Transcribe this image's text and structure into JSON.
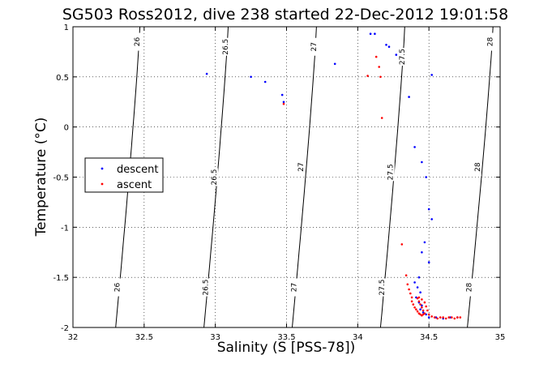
{
  "chart_data": {
    "type": "scatter",
    "title": "SG503 Ross2012, dive 238 started 22-Dec-2012 19:01:58",
    "xlabel": "Salinity (S [PSS-78])",
    "ylabel": "Temperature (°C)",
    "xlim": [
      32,
      35
    ],
    "ylim": [
      -2,
      1
    ],
    "xticks": [
      "32",
      "32.5",
      "33",
      "33.5",
      "34",
      "34.5",
      "35"
    ],
    "yticks": [
      "-2",
      "-1.5",
      "-1",
      "-0.5",
      "0",
      "0.5",
      "1"
    ],
    "xtick_values": [
      32,
      32.5,
      33,
      33.5,
      34,
      34.5,
      35
    ],
    "ytick_values": [
      -2,
      -1.5,
      -1,
      -0.5,
      0,
      0.5,
      1
    ],
    "grid": true,
    "legend_position": "left",
    "density_contours": [
      {
        "label": "26",
        "x_top": 32.47,
        "x_bottom": 32.3,
        "label_positions": [
          [
            32.45,
            0.85
          ],
          [
            32.31,
            -1.6
          ]
        ]
      },
      {
        "label": "26.5",
        "x_top": 33.09,
        "x_bottom": 32.92,
        "label_positions": [
          [
            33.07,
            0.8
          ],
          [
            32.99,
            -0.5
          ],
          [
            32.93,
            -1.6
          ]
        ]
      },
      {
        "label": "27",
        "x_top": 33.71,
        "x_bottom": 33.54,
        "label_positions": [
          [
            33.69,
            0.8
          ],
          [
            33.6,
            -0.4
          ],
          [
            33.55,
            -1.6
          ]
        ]
      },
      {
        "label": "27.5",
        "x_top": 34.33,
        "x_bottom": 34.16,
        "label_positions": [
          [
            34.31,
            0.7
          ],
          [
            34.23,
            -0.45
          ],
          [
            34.17,
            -1.6
          ]
        ]
      },
      {
        "label": "28",
        "x_top": 34.95,
        "x_bottom": 34.77,
        "label_positions": [
          [
            34.93,
            0.85
          ],
          [
            34.84,
            -0.4
          ],
          [
            34.78,
            -1.6
          ]
        ]
      }
    ],
    "series": [
      {
        "name": "descent",
        "color": "#0000ff",
        "points": [
          [
            32.94,
            0.53
          ],
          [
            33.25,
            0.5
          ],
          [
            33.35,
            0.45
          ],
          [
            33.47,
            0.32
          ],
          [
            33.48,
            0.25
          ],
          [
            33.84,
            0.63
          ],
          [
            34.09,
            0.93
          ],
          [
            34.12,
            0.93
          ],
          [
            34.2,
            0.82
          ],
          [
            34.22,
            0.8
          ],
          [
            34.27,
            0.72
          ],
          [
            34.36,
            0.3
          ],
          [
            34.4,
            -0.2
          ],
          [
            34.45,
            -0.35
          ],
          [
            34.48,
            -0.5
          ],
          [
            34.52,
            0.52
          ],
          [
            34.5,
            -0.82
          ],
          [
            34.52,
            -0.92
          ],
          [
            34.47,
            -1.15
          ],
          [
            34.45,
            -1.25
          ],
          [
            34.5,
            -1.35
          ],
          [
            34.43,
            -1.5
          ],
          [
            34.4,
            -1.55
          ],
          [
            34.42,
            -1.6
          ],
          [
            34.44,
            -1.65
          ],
          [
            34.41,
            -1.7
          ],
          [
            34.43,
            -1.75
          ],
          [
            34.45,
            -1.78
          ],
          [
            34.44,
            -1.82
          ],
          [
            34.46,
            -1.85
          ],
          [
            34.48,
            -1.87
          ],
          [
            34.5,
            -1.9
          ],
          [
            34.55,
            -1.9
          ],
          [
            34.6,
            -1.91
          ],
          [
            34.65,
            -1.9
          ],
          [
            34.7,
            -1.9
          ]
        ]
      },
      {
        "name": "ascent",
        "color": "#ff0000",
        "points": [
          [
            33.48,
            0.23
          ],
          [
            34.07,
            0.51
          ],
          [
            34.13,
            0.7
          ],
          [
            34.15,
            0.6
          ],
          [
            34.16,
            0.5
          ],
          [
            34.17,
            0.09
          ],
          [
            34.31,
            -1.17
          ],
          [
            34.34,
            -1.48
          ],
          [
            34.35,
            -1.57
          ],
          [
            34.36,
            -1.62
          ],
          [
            34.37,
            -1.66
          ],
          [
            34.38,
            -1.7
          ],
          [
            34.38,
            -1.74
          ],
          [
            34.39,
            -1.77
          ],
          [
            34.4,
            -1.8
          ],
          [
            34.41,
            -1.82
          ],
          [
            34.42,
            -1.84
          ],
          [
            34.43,
            -1.86
          ],
          [
            34.44,
            -1.87
          ],
          [
            34.45,
            -1.88
          ],
          [
            34.46,
            -1.87
          ],
          [
            34.47,
            -1.86
          ],
          [
            34.46,
            -1.83
          ],
          [
            34.45,
            -1.8
          ],
          [
            34.44,
            -1.77
          ],
          [
            34.43,
            -1.74
          ],
          [
            34.42,
            -1.71
          ],
          [
            34.43,
            -1.7
          ],
          [
            34.45,
            -1.72
          ],
          [
            34.47,
            -1.75
          ],
          [
            34.48,
            -1.79
          ],
          [
            34.49,
            -1.83
          ],
          [
            34.5,
            -1.87
          ],
          [
            34.52,
            -1.89
          ],
          [
            34.54,
            -1.9
          ],
          [
            34.56,
            -1.91
          ],
          [
            34.58,
            -1.9
          ],
          [
            34.6,
            -1.9
          ],
          [
            34.62,
            -1.91
          ],
          [
            34.64,
            -1.9
          ],
          [
            34.66,
            -1.9
          ],
          [
            34.68,
            -1.91
          ],
          [
            34.7,
            -1.9
          ],
          [
            34.72,
            -1.9
          ]
        ]
      }
    ]
  }
}
